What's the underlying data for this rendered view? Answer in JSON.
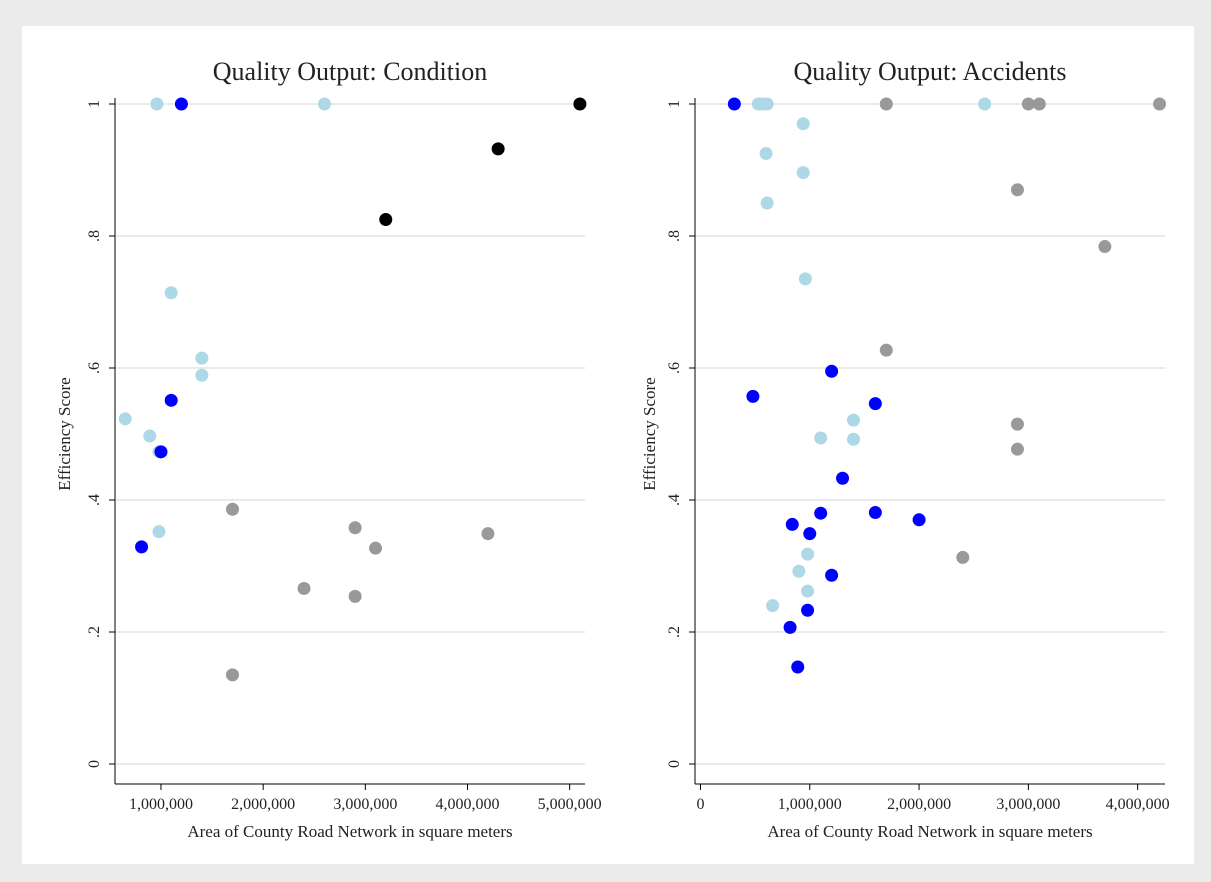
{
  "colors": {
    "background": "#ebebeb",
    "plot_background": "#ffffff",
    "gridline": "#dedede",
    "light_blue": "#add8e6",
    "blue": "#0000ff",
    "gray": "#999999",
    "black": "#000000"
  },
  "chart_data": [
    {
      "type": "scatter",
      "title": "Quality Output: Condition",
      "xlabel": "Area of County Road Network in square meters",
      "ylabel": "Efficiency Score",
      "xlim": [
        550000,
        5150000
      ],
      "ylim": [
        0,
        1
      ],
      "x_ticks": [
        1000000,
        2000000,
        3000000,
        4000000,
        5000000
      ],
      "x_tick_labels": [
        "1,000,000",
        "2,000,000",
        "3,000,000",
        "4,000,000",
        "5,000,000"
      ],
      "y_ticks": [
        0,
        0.2,
        0.4,
        0.6,
        0.8,
        1
      ],
      "y_tick_labels": [
        "0",
        ".2",
        ".4",
        ".6",
        ".8",
        "1"
      ],
      "grid": true,
      "legend": "none",
      "series": [
        {
          "color": "#add8e6",
          "points": [
            [
              960000,
              1.0
            ],
            [
              2600000,
              1.0
            ],
            [
              1100000,
              0.714
            ],
            [
              1400000,
              0.615
            ],
            [
              1400000,
              0.589
            ],
            [
              650000,
              0.523
            ],
            [
              890000,
              0.497
            ],
            [
              980000,
              0.473
            ],
            [
              980000,
              0.352
            ]
          ]
        },
        {
          "color": "#0000ff",
          "points": [
            [
              1200000,
              1.0
            ],
            [
              1100000,
              0.551
            ],
            [
              1000000,
              0.473
            ],
            [
              810000,
              0.329
            ]
          ]
        },
        {
          "color": "#999999",
          "points": [
            [
              1700000,
              0.386
            ],
            [
              2900000,
              0.358
            ],
            [
              3100000,
              0.327
            ],
            [
              4200000,
              0.349
            ],
            [
              2400000,
              0.266
            ],
            [
              2900000,
              0.254
            ],
            [
              1700000,
              0.135
            ]
          ]
        },
        {
          "color": "#000000",
          "points": [
            [
              5100000,
              1.0
            ],
            [
              4300000,
              0.932
            ],
            [
              3200000,
              0.825
            ]
          ]
        }
      ]
    },
    {
      "type": "scatter",
      "title": "Quality Output: Accidents",
      "xlabel": "Area of County Road Network in square meters",
      "ylabel": "Efficiency Score",
      "xlim": [
        -50000,
        4250000
      ],
      "ylim": [
        0,
        1
      ],
      "x_ticks": [
        0,
        1000000,
        2000000,
        3000000,
        4000000
      ],
      "x_tick_labels": [
        "0",
        "1,000,000",
        "2,000,000",
        "3,000,000",
        "4,000,000"
      ],
      "y_ticks": [
        0,
        0.2,
        0.4,
        0.6,
        0.8,
        1
      ],
      "y_tick_labels": [
        "0",
        ".2",
        ".4",
        ".6",
        ".8",
        "1"
      ],
      "grid": true,
      "legend": "none",
      "series": [
        {
          "color": "#add8e6",
          "points": [
            [
              530000,
              1.0
            ],
            [
              570000,
              1.0
            ],
            [
              610000,
              1.0
            ],
            [
              2600000,
              1.0
            ],
            [
              940000,
              0.97
            ],
            [
              600000,
              0.925
            ],
            [
              940000,
              0.896
            ],
            [
              610000,
              0.85
            ],
            [
              960000,
              0.735
            ],
            [
              1100000,
              0.494
            ],
            [
              1400000,
              0.521
            ],
            [
              1400000,
              0.492
            ],
            [
              980000,
              0.318
            ],
            [
              900000,
              0.292
            ],
            [
              980000,
              0.262
            ],
            [
              660000,
              0.24
            ]
          ]
        },
        {
          "color": "#0000ff",
          "points": [
            [
              310000,
              1.0
            ],
            [
              1200000,
              0.595
            ],
            [
              480000,
              0.557
            ],
            [
              1600000,
              0.546
            ],
            [
              1300000,
              0.433
            ],
            [
              1100000,
              0.38
            ],
            [
              1600000,
              0.381
            ],
            [
              2000000,
              0.37
            ],
            [
              840000,
              0.363
            ],
            [
              1000000,
              0.349
            ],
            [
              1200000,
              0.286
            ],
            [
              980000,
              0.233
            ],
            [
              820000,
              0.207
            ],
            [
              890000,
              0.147
            ]
          ]
        },
        {
          "color": "#999999",
          "points": [
            [
              1700000,
              1.0
            ],
            [
              3000000,
              1.0
            ],
            [
              3100000,
              1.0
            ],
            [
              4200000,
              1.0
            ],
            [
              2900000,
              0.87
            ],
            [
              3700000,
              0.784
            ],
            [
              1700000,
              0.627
            ],
            [
              2900000,
              0.515
            ],
            [
              2900000,
              0.477
            ],
            [
              2400000,
              0.313
            ]
          ]
        }
      ]
    }
  ]
}
